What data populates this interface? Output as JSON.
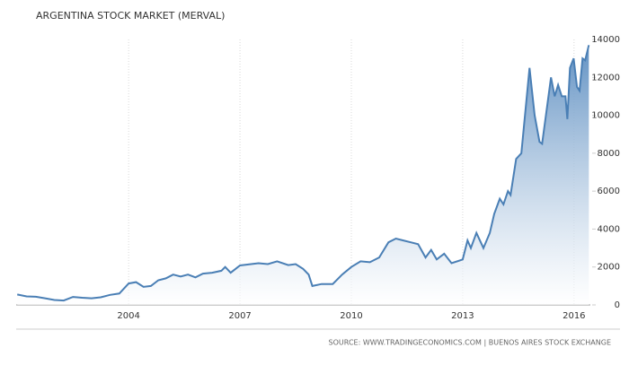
{
  "chart_data": {
    "type": "area",
    "title": "ARGENTINA STOCK MARKET (MERVAL)",
    "source": "SOURCE: WWW.TRADINGECONOMICS.COM | BUENOS AIRES STOCK EXCHANGE",
    "series": [
      {
        "name": "MERVAL",
        "color": "#4a7fb5",
        "x": [
          2001.0,
          2001.25,
          2001.5,
          2001.75,
          2002.0,
          2002.25,
          2002.5,
          2002.75,
          2003.0,
          2003.25,
          2003.5,
          2003.75,
          2004.0,
          2004.2,
          2004.4,
          2004.6,
          2004.8,
          2005.0,
          2005.2,
          2005.4,
          2005.6,
          2005.8,
          2006.0,
          2006.25,
          2006.5,
          2006.6,
          2006.75,
          2007.0,
          2007.5,
          2007.75,
          2008.0,
          2008.3,
          2008.5,
          2008.7,
          2008.85,
          2008.95,
          2009.2,
          2009.5,
          2009.75,
          2010.0,
          2010.25,
          2010.5,
          2010.75,
          2011.0,
          2011.2,
          2011.4,
          2011.6,
          2011.8,
          2012.0,
          2012.15,
          2012.3,
          2012.5,
          2012.7,
          2013.0,
          2013.13,
          2013.22,
          2013.37,
          2013.56,
          2013.73,
          2013.85,
          2014.0,
          2014.1,
          2014.22,
          2014.29,
          2014.44,
          2014.58,
          2014.8,
          2014.94,
          2015.07,
          2015.14,
          2015.38,
          2015.48,
          2015.57,
          2015.67,
          2015.77,
          2015.82,
          2015.89,
          2015.99,
          2016.08,
          2016.15,
          2016.23,
          2016.3,
          2016.4
        ],
        "values": [
          550,
          450,
          430,
          350,
          260,
          230,
          420,
          380,
          350,
          400,
          530,
          600,
          1130,
          1200,
          950,
          1000,
          1300,
          1400,
          1600,
          1500,
          1600,
          1450,
          1650,
          1700,
          1800,
          2000,
          1700,
          2080,
          2200,
          2150,
          2300,
          2100,
          2150,
          1900,
          1600,
          1000,
          1100,
          1100,
          1600,
          2000,
          2300,
          2250,
          2500,
          3300,
          3500,
          3400,
          3300,
          3200,
          2500,
          2900,
          2400,
          2700,
          2200,
          2400,
          3400,
          3000,
          3800,
          3000,
          3800,
          4800,
          5600,
          5300,
          6000,
          5800,
          7700,
          8000,
          12500,
          10000,
          8600,
          8500,
          12000,
          11000,
          11600,
          11000,
          11000,
          9800,
          12500,
          13000,
          11500,
          11300,
          13000,
          12900,
          13700
        ]
      }
    ],
    "xlim": [
      2000.97,
      2016.44
    ],
    "xticks": [
      2004,
      2007,
      2010,
      2013,
      2016
    ],
    "ylim": [
      0,
      14000
    ],
    "yticks": [
      0,
      2000,
      4000,
      6000,
      8000,
      10000,
      12000,
      14000
    ],
    "grid": true
  }
}
